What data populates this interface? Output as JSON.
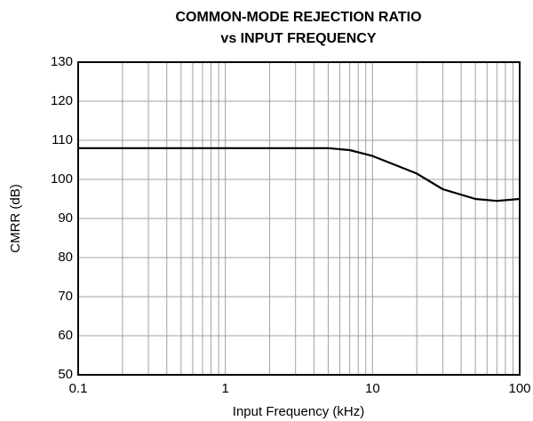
{
  "chart_data": {
    "type": "line",
    "title": [
      "COMMON-MODE REJECTION RATIO",
      "vs INPUT FREQUENCY"
    ],
    "xlabel": "Input Frequency (kHz)",
    "ylabel": "CMRR (dB)",
    "x": [
      0.1,
      1,
      5,
      7,
      10,
      20,
      30,
      50,
      70,
      100
    ],
    "series": [
      {
        "name": "CMRR",
        "color": "#000000",
        "values": [
          108,
          108,
          108,
          107.5,
          106,
          101.5,
          97.5,
          95,
          94.5,
          95
        ]
      }
    ],
    "xscale": "log",
    "xlim": [
      0.1,
      100
    ],
    "xticks": [
      0.1,
      1,
      10,
      100
    ],
    "xminorticks": [
      0.2,
      0.3,
      0.4,
      0.5,
      0.6,
      0.7,
      0.8,
      0.9,
      2,
      3,
      4,
      5,
      6,
      7,
      8,
      9,
      20,
      30,
      40,
      50,
      60,
      70,
      80,
      90
    ],
    "ylim": [
      50,
      130
    ],
    "yticks": [
      50,
      60,
      70,
      80,
      90,
      100,
      110,
      120,
      130
    ],
    "grid": true
  }
}
